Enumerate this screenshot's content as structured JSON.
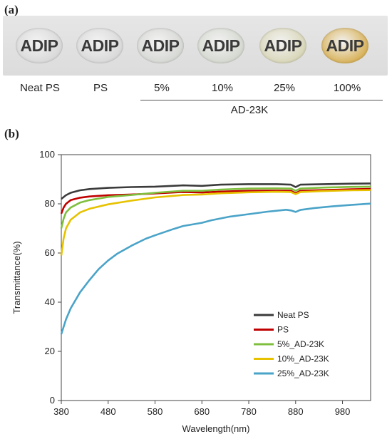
{
  "panel_a": {
    "label": "(a)",
    "disc_text": "ADIP",
    "samples": [
      {
        "label": "Neat PS",
        "tint": "#d9d9d9"
      },
      {
        "label": "PS",
        "tint": "#d9d9d9"
      },
      {
        "label": "5%",
        "tint": "#d6d8d4"
      },
      {
        "label": "10%",
        "tint": "#d4d8cf"
      },
      {
        "label": "25%",
        "tint": "#d8d6b8"
      },
      {
        "label": "100%",
        "tint": "#d8b25a"
      }
    ],
    "group_label": "AD-23K"
  },
  "panel_b": {
    "label": "(b)"
  },
  "chart_data": {
    "type": "line",
    "xlabel": "Wavelength(nm)",
    "ylabel": "Transmittance(%)",
    "xlim": [
      380,
      1040
    ],
    "ylim": [
      0,
      100
    ],
    "xticks": [
      380,
      480,
      580,
      680,
      780,
      880,
      980
    ],
    "yticks": [
      0,
      20,
      40,
      60,
      80,
      100
    ],
    "grid": false,
    "legend_position": "lower-right",
    "series": [
      {
        "name": "Neat PS",
        "color": "#3b3b3b",
        "points": [
          [
            380,
            82
          ],
          [
            390,
            83.5
          ],
          [
            400,
            84.5
          ],
          [
            420,
            85.5
          ],
          [
            440,
            86
          ],
          [
            480,
            86.5
          ],
          [
            530,
            86.8
          ],
          [
            580,
            87
          ],
          [
            640,
            87.5
          ],
          [
            680,
            87.3
          ],
          [
            720,
            87.8
          ],
          [
            780,
            88
          ],
          [
            840,
            88
          ],
          [
            870,
            87.8
          ],
          [
            880,
            86.8
          ],
          [
            890,
            87.8
          ],
          [
            940,
            88
          ],
          [
            1000,
            88.2
          ],
          [
            1040,
            88.3
          ]
        ]
      },
      {
        "name": "PS",
        "color": "#c00000",
        "points": [
          [
            380,
            76
          ],
          [
            385,
            78.5
          ],
          [
            390,
            80
          ],
          [
            400,
            81.5
          ],
          [
            420,
            82.5
          ],
          [
            440,
            83
          ],
          [
            480,
            83.5
          ],
          [
            530,
            83.8
          ],
          [
            580,
            84.2
          ],
          [
            640,
            84.8
          ],
          [
            680,
            84.6
          ],
          [
            720,
            85
          ],
          [
            780,
            85.3
          ],
          [
            840,
            85.4
          ],
          [
            870,
            85.3
          ],
          [
            880,
            84.3
          ],
          [
            890,
            85.3
          ],
          [
            940,
            85.6
          ],
          [
            1000,
            85.9
          ],
          [
            1040,
            86.1
          ]
        ]
      },
      {
        "name": "5%_AD-23K",
        "color": "#7fbf3f",
        "points": [
          [
            380,
            70
          ],
          [
            385,
            74
          ],
          [
            390,
            76.5
          ],
          [
            400,
            78.5
          ],
          [
            420,
            80.5
          ],
          [
            440,
            81.5
          ],
          [
            480,
            82.8
          ],
          [
            530,
            83.6
          ],
          [
            580,
            84.5
          ],
          [
            640,
            85.3
          ],
          [
            680,
            85.3
          ],
          [
            720,
            85.8
          ],
          [
            780,
            86.2
          ],
          [
            840,
            86.3
          ],
          [
            870,
            86.2
          ],
          [
            880,
            85.3
          ],
          [
            890,
            86.2
          ],
          [
            940,
            86.6
          ],
          [
            1000,
            86.9
          ],
          [
            1040,
            87
          ]
        ]
      },
      {
        "name": "10%_AD-23K",
        "color": "#e6c200",
        "points": [
          [
            380,
            59
          ],
          [
            385,
            66
          ],
          [
            390,
            70
          ],
          [
            400,
            73.5
          ],
          [
            420,
            76.5
          ],
          [
            440,
            78
          ],
          [
            480,
            79.8
          ],
          [
            530,
            81.3
          ],
          [
            580,
            82.6
          ],
          [
            640,
            83.6
          ],
          [
            680,
            83.8
          ],
          [
            720,
            84.3
          ],
          [
            780,
            84.7
          ],
          [
            840,
            84.9
          ],
          [
            870,
            84.8
          ],
          [
            880,
            83.9
          ],
          [
            890,
            84.8
          ],
          [
            940,
            85.2
          ],
          [
            1000,
            85.5
          ],
          [
            1040,
            85.6
          ]
        ]
      },
      {
        "name": "25%_AD-23K",
        "color": "#4aa3c8",
        "points": [
          [
            380,
            27
          ],
          [
            390,
            33
          ],
          [
            400,
            37.5
          ],
          [
            420,
            44
          ],
          [
            440,
            49
          ],
          [
            460,
            53.5
          ],
          [
            480,
            57
          ],
          [
            500,
            59.8
          ],
          [
            530,
            63
          ],
          [
            560,
            65.8
          ],
          [
            580,
            67.2
          ],
          [
            620,
            69.8
          ],
          [
            640,
            71
          ],
          [
            680,
            72.3
          ],
          [
            700,
            73.3
          ],
          [
            740,
            74.8
          ],
          [
            780,
            75.8
          ],
          [
            820,
            76.8
          ],
          [
            860,
            77.6
          ],
          [
            870,
            77.3
          ],
          [
            880,
            76.7
          ],
          [
            890,
            77.5
          ],
          [
            920,
            78.3
          ],
          [
            960,
            79
          ],
          [
            1000,
            79.6
          ],
          [
            1040,
            80.1
          ]
        ]
      }
    ]
  }
}
